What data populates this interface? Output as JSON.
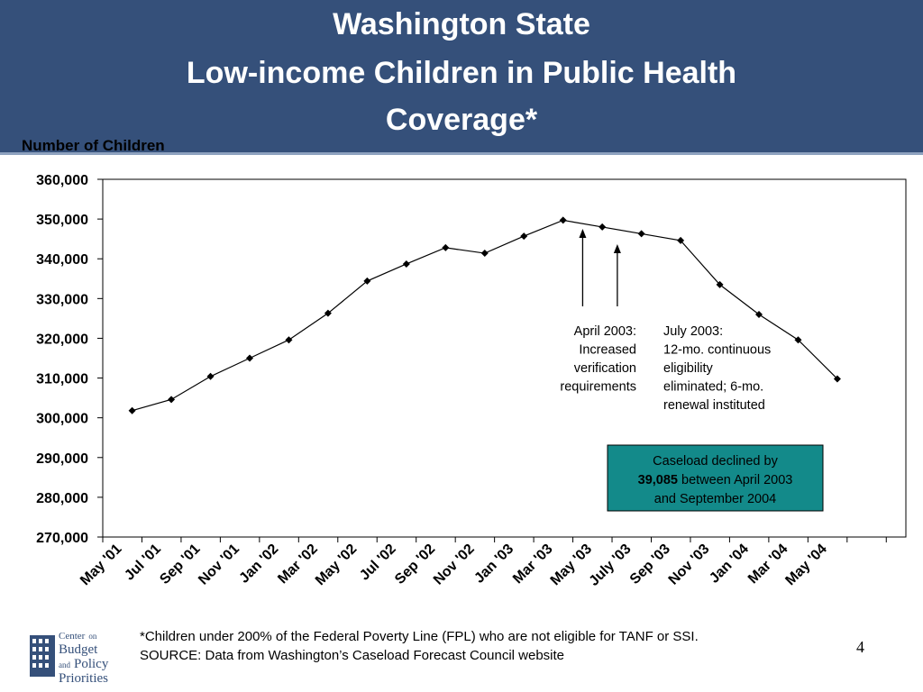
{
  "slide": {
    "title_line1": "Washington State",
    "title_line2": "Low-income Children in Public Health",
    "title_line3": "Coverage*",
    "page_number": "4",
    "footnote": "*Children under 200% of the Federal Poverty Line (FPL) who are not eligible for TANF or SSI.",
    "source": "SOURCE: Data from Washington’s Caseload Forecast Council website"
  },
  "logo": {
    "word1": "Center",
    "word2": "on",
    "word3": "Budget",
    "word4": "and",
    "word5": "Policy",
    "word6": "Priorities"
  },
  "colors": {
    "title_bg": "#35507a",
    "callout_bg": "#138a8a",
    "line": "#000000"
  },
  "chart_data": {
    "type": "line",
    "title": "",
    "ylabel": "Number of Children",
    "xlabel": "",
    "ylim": [
      270000,
      360000
    ],
    "yticks": [
      270000,
      280000,
      290000,
      300000,
      310000,
      320000,
      330000,
      340000,
      350000,
      360000
    ],
    "ytick_labels": [
      "270,000",
      "280,000",
      "290,000",
      "300,000",
      "310,000",
      "320,000",
      "330,000",
      "340,000",
      "350,000",
      "360,000"
    ],
    "grid": false,
    "x_labels": [
      "May '01",
      "Jul '01",
      "Sep '01",
      "Nov '01",
      "Jan '02",
      "Mar '02",
      "May '02",
      "Jul '02",
      "Sep '02",
      "Nov '02",
      "Jan '03",
      "Mar '03",
      "May '03",
      "July '03",
      "Sep '03",
      "Nov '03",
      "Jan '04",
      "Mar '04",
      "May '04"
    ],
    "x_months": [
      "May '01",
      "Jun '01",
      "Jul '01",
      "Aug '01",
      "Sep '01",
      "Oct '01",
      "Nov '01",
      "Dec '01",
      "Jan '02",
      "Feb '02",
      "Mar '02",
      "Apr '02",
      "May '02",
      "Jun '02",
      "Jul '02",
      "Aug '02",
      "Sep '02",
      "Oct '02",
      "Nov '02",
      "Dec '02",
      "Jan '03",
      "Feb '03",
      "Mar '03",
      "Apr '03",
      "May '03",
      "Jun '03",
      "Jul '03",
      "Aug '03",
      "Sep '03",
      "Oct '03",
      "Nov '03",
      "Dec '03",
      "Jan '04",
      "Feb '04",
      "Mar '04",
      "Apr '04",
      "May '04",
      "Jun '04",
      "Jul '04",
      "Aug '04",
      "Sep '04"
    ],
    "series": [
      {
        "points": [
          {
            "x": "Jun '01",
            "y": 301800
          },
          {
            "x": "Aug '01",
            "y": 304600
          },
          {
            "x": "Oct '01",
            "y": 310400
          },
          {
            "x": "Dec '01",
            "y": 315000
          },
          {
            "x": "Feb '02",
            "y": 319600
          },
          {
            "x": "Apr '02",
            "y": 326300
          },
          {
            "x": "Jun '02",
            "y": 334400
          },
          {
            "x": "Aug '02",
            "y": 338700
          },
          {
            "x": "Oct '02",
            "y": 342800
          },
          {
            "x": "Dec '02",
            "y": 341400
          },
          {
            "x": "Feb '03",
            "y": 345700
          },
          {
            "x": "Apr '03",
            "y": 349700
          },
          {
            "x": "Jun '03",
            "y": 348000
          },
          {
            "x": "Aug '03",
            "y": 346300
          },
          {
            "x": "Oct '03",
            "y": 344600
          },
          {
            "x": "Dec '03",
            "y": 333500
          },
          {
            "x": "Feb '04",
            "y": 326000
          },
          {
            "x": "Apr '04",
            "y": 319600
          },
          {
            "x": "Jun '04",
            "y": 309800
          }
        ]
      }
    ],
    "annotations": [
      {
        "lines": [
          "April 2003:",
          "Increased",
          "verification",
          "requirements"
        ],
        "arrow_to_x": "May '03"
      },
      {
        "lines": [
          "July 2003:",
          "12-mo. continuous",
          "eligibility",
          "eliminated; 6-mo.",
          "renewal instituted"
        ],
        "arrow_to_x": "Jul '03"
      }
    ],
    "callout": {
      "line1": "Caseload declined by",
      "line2_bold": "39,085",
      "line2_rest": " between April 2003",
      "line3": "and September 2004"
    }
  }
}
